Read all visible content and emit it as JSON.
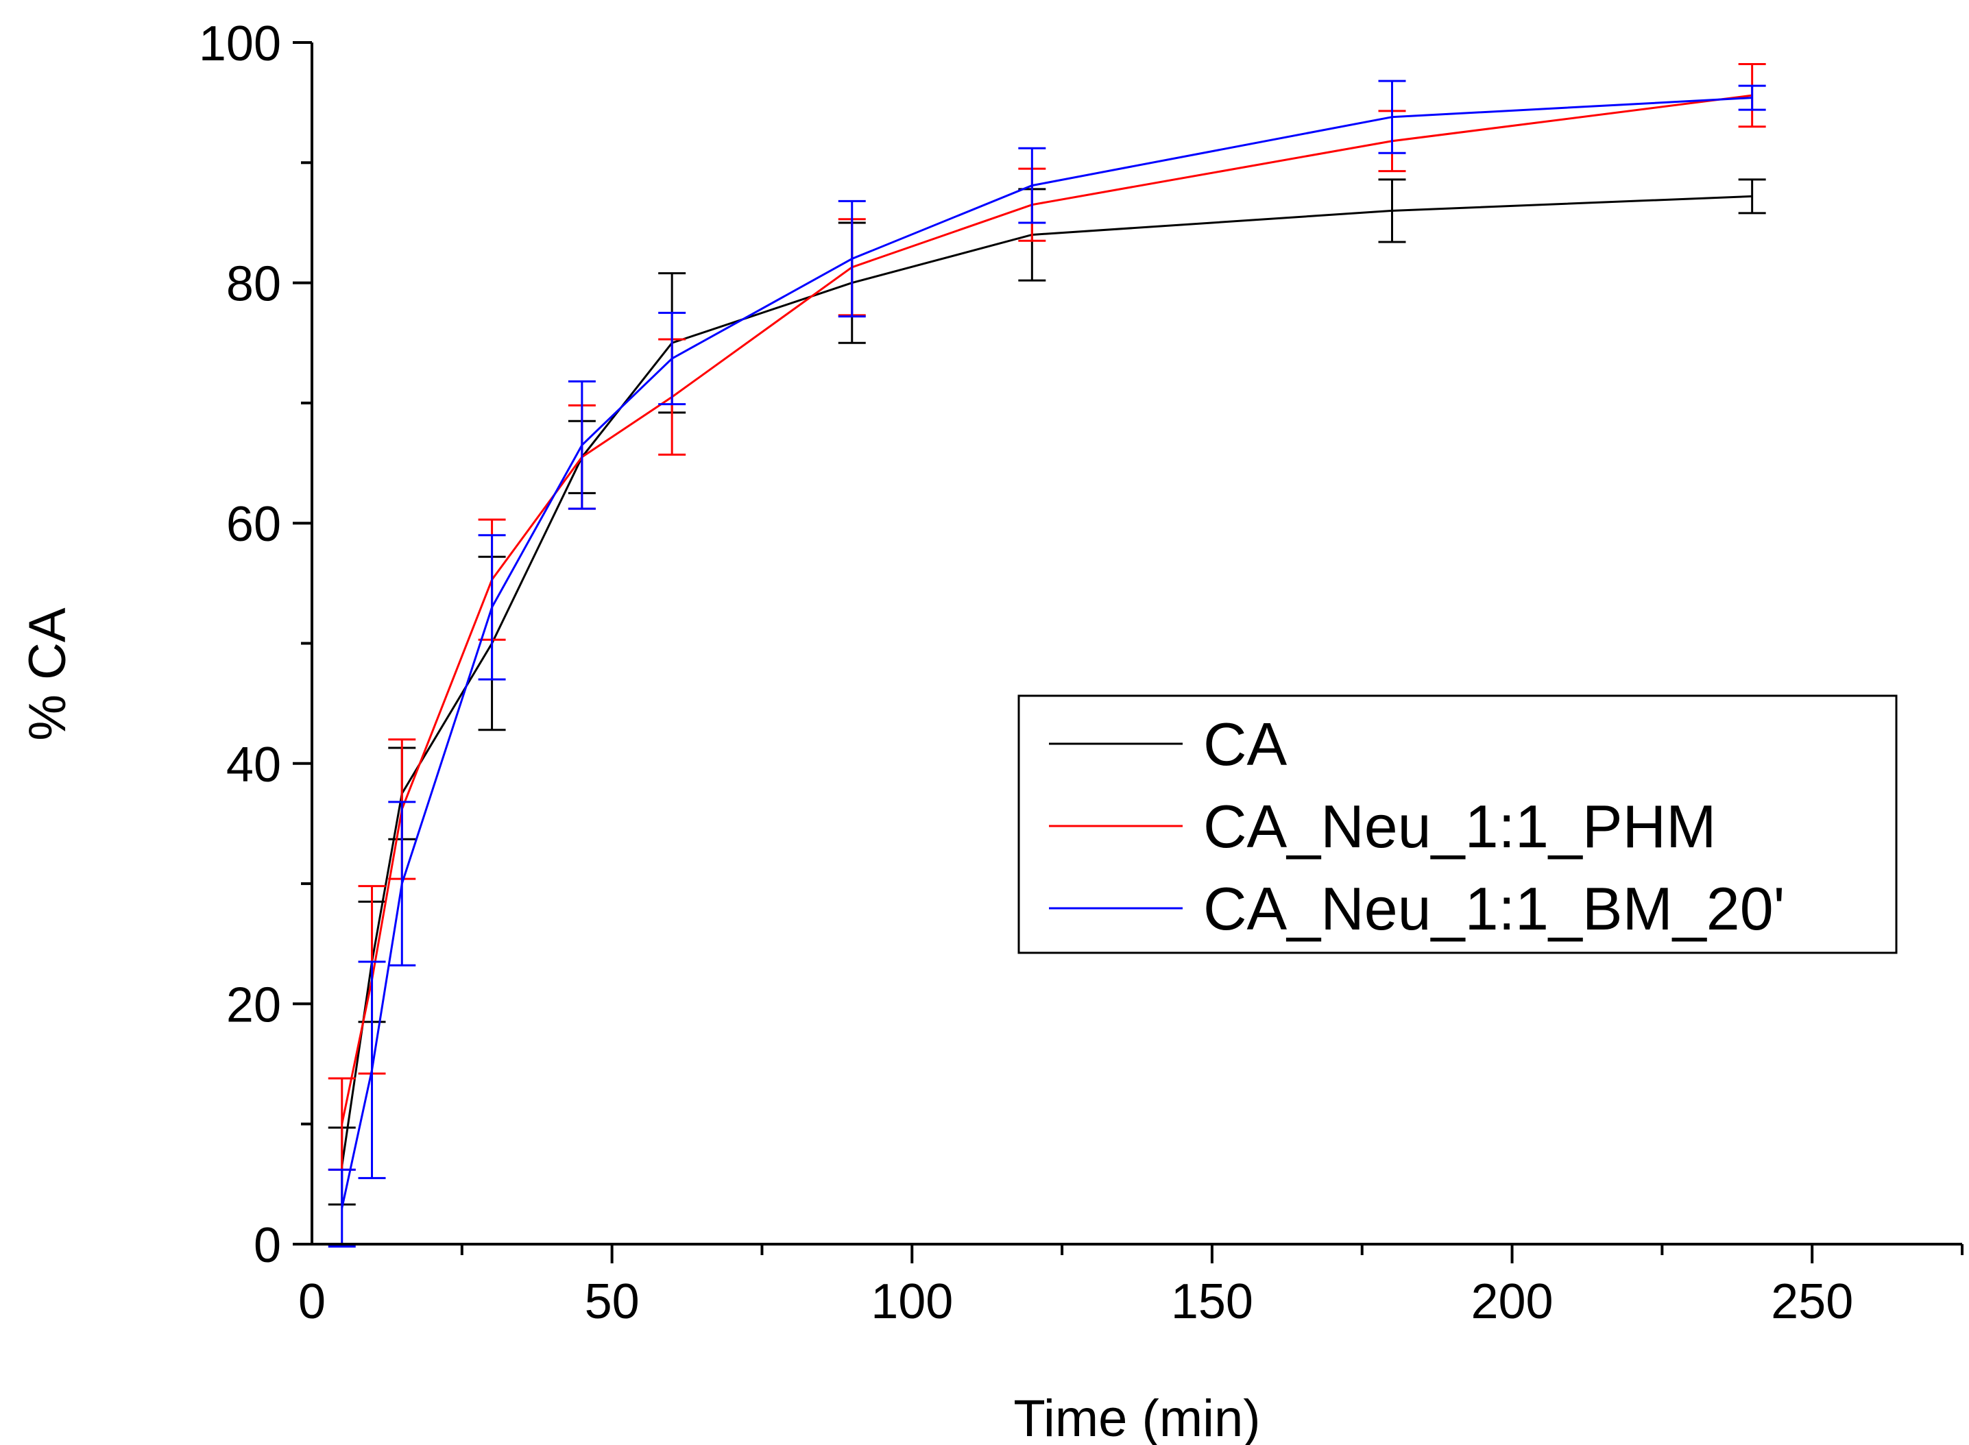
{
  "chart_data": {
    "type": "line",
    "title": "",
    "xlabel": "Time (min)",
    "ylabel": "% CA",
    "xlim": [
      0,
      275
    ],
    "ylim": [
      0,
      100
    ],
    "x_ticks": [
      0,
      50,
      100,
      150,
      200,
      250
    ],
    "y_ticks": [
      0,
      20,
      40,
      60,
      80,
      100
    ],
    "x_minor_step": 25,
    "y_minor_step": 10,
    "legend_position": "middle-right",
    "grid": false,
    "series": [
      {
        "name": "CA",
        "color": "#000000",
        "x": [
          5,
          10,
          15,
          30,
          45,
          60,
          90,
          120,
          180,
          240
        ],
        "y": [
          6.5,
          23.5,
          37.5,
          50.0,
          65.5,
          75.0,
          80.0,
          84.0,
          86.0,
          87.2
        ],
        "err": [
          3.2,
          5.0,
          3.8,
          7.2,
          3.0,
          5.8,
          5.0,
          3.8,
          2.6,
          1.4
        ]
      },
      {
        "name": "CA_Neu_1:1_PHM",
        "color": "#ff0000",
        "x": [
          5,
          10,
          15,
          30,
          45,
          60,
          90,
          120,
          180,
          240
        ],
        "y": [
          10.0,
          22.0,
          36.2,
          55.3,
          65.5,
          70.5,
          81.3,
          86.5,
          91.8,
          95.6
        ],
        "err": [
          3.8,
          7.8,
          5.8,
          5.0,
          4.3,
          4.8,
          4.0,
          3.0,
          2.5,
          2.6
        ]
      },
      {
        "name": "CA_Neu_1:1_BM_20'",
        "color": "#0000ff",
        "x": [
          5,
          10,
          15,
          30,
          45,
          60,
          90,
          120,
          180,
          240
        ],
        "y": [
          3.0,
          14.5,
          30.0,
          53.0,
          66.5,
          73.7,
          82.0,
          88.1,
          93.8,
          95.4
        ],
        "err": [
          3.2,
          9.0,
          6.8,
          6.0,
          5.3,
          3.8,
          4.8,
          3.1,
          3.0,
          1.0
        ]
      }
    ]
  }
}
